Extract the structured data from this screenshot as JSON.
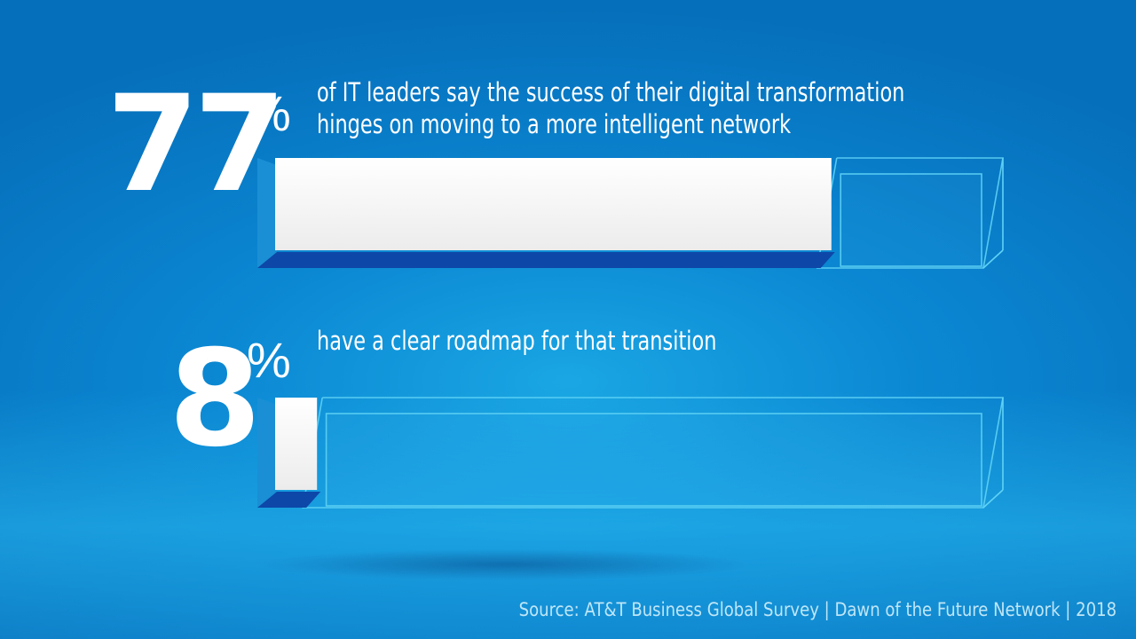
{
  "chart_data": {
    "type": "bar",
    "orientation": "horizontal",
    "style": "3d-progress",
    "items": [
      {
        "value": 77,
        "value_label": "77",
        "unit": "%",
        "text_lines": [
          "of IT leaders say the success of their digital transformation",
          "hinges on moving to a more intelligent network"
        ]
      },
      {
        "value": 8,
        "value_label": "8",
        "unit": "%",
        "text_lines": [
          "have a clear roadmap for that transition"
        ]
      }
    ],
    "max": 100
  },
  "source": "Source: AT&T Business Global Survey | Dawn of the Future Network | 2018",
  "colors": {
    "fill_face": "#f7f7f7",
    "fill_side": "#1b8fd6",
    "fill_bottom": "#0d47a8",
    "outline": "#5fd3f5"
  }
}
